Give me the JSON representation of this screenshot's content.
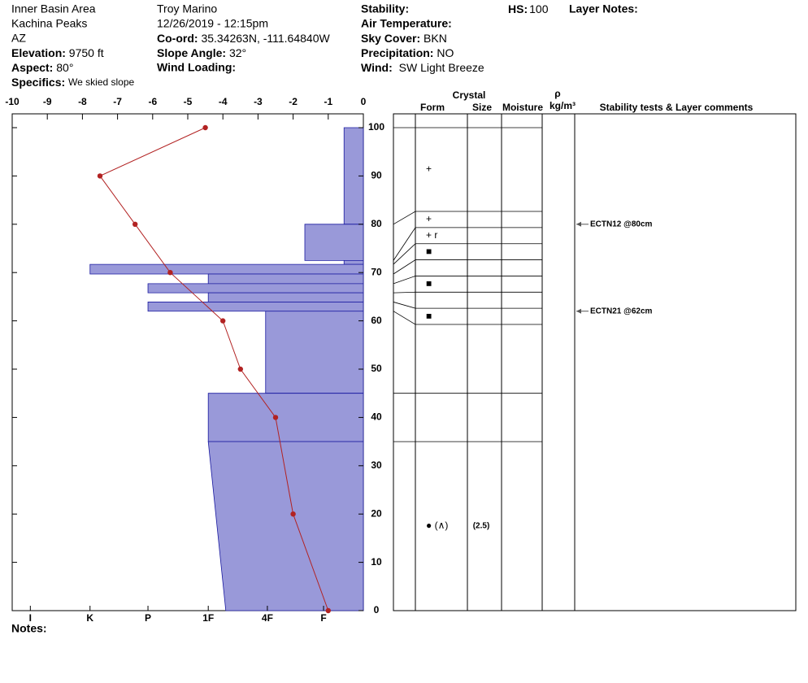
{
  "header": {
    "location": [
      "Inner Basin Area",
      "Kachina Peaks",
      "AZ"
    ],
    "elevation": {
      "label": "Elevation:",
      "value": "9750 ft"
    },
    "aspect": {
      "label": "Aspect:",
      "value": "80°"
    },
    "specifics": {
      "label": "Specifics:",
      "value": "We skied slope"
    },
    "observer": "Troy Marino",
    "datetime": "12/26/2019 - 12:15pm",
    "coord": {
      "label": "Co-ord:",
      "value": "35.34263N, -111.64840W"
    },
    "slope_angle": {
      "label": "Slope Angle:",
      "value": "32°"
    },
    "wind_loading": {
      "label": "Wind Loading:"
    },
    "stability": {
      "label": "Stability:"
    },
    "air_temperature": {
      "label": "Air Temperature:"
    },
    "sky_cover": {
      "label": "Sky Cover:",
      "value": "BKN"
    },
    "precipitation": {
      "label": "Precipitation:",
      "value": "NO"
    },
    "wind": {
      "label": "Wind:",
      "value": "SW Light Breeze"
    },
    "hs": {
      "label": "HS:",
      "value": "100"
    },
    "layer_notes": {
      "label": "Layer Notes:"
    },
    "notes": {
      "label": "Notes:"
    }
  },
  "chart_data": {
    "type": "snow_profile",
    "xlim": [
      -10,
      0
    ],
    "xticks": [
      -10,
      -9,
      -8,
      -7,
      -6,
      -5,
      -4,
      -3,
      -2,
      -1,
      0
    ],
    "ylim": [
      0,
      100
    ],
    "yticks": [
      0,
      10,
      20,
      30,
      40,
      50,
      60,
      70,
      80,
      90,
      100
    ],
    "hardness_xlim": [
      6,
      0
    ],
    "hardness_ticks": [
      {
        "value": 5.69,
        "label": "I"
      },
      {
        "value": 4.67,
        "label": "K"
      },
      {
        "value": 3.68,
        "label": "P"
      },
      {
        "value": 2.65,
        "label": "1F"
      },
      {
        "value": 1.64,
        "label": "4F"
      },
      {
        "value": 0.68,
        "label": "F"
      }
    ],
    "temperature": {
      "color": "#b22222",
      "depth": [
        100,
        90,
        80,
        70,
        60,
        50,
        40,
        20,
        0
      ],
      "temp": [
        -4.5,
        -7.5,
        -6.5,
        -5.5,
        -4,
        -3.5,
        -2.5,
        -2,
        -1
      ]
    },
    "layer_color": "#9999d9",
    "layers": [
      {
        "top": 100,
        "bottom": 80,
        "hardness": [
          0.33,
          0.33
        ],
        "form": "+"
      },
      {
        "top": 80,
        "bottom": 72.5,
        "hardness": [
          1,
          1
        ],
        "form": "+"
      },
      {
        "top": 72.5,
        "bottom": 71.7,
        "hardness": [
          0.33,
          0.33
        ],
        "form": "+ r"
      },
      {
        "top": 71.7,
        "bottom": 69.7,
        "hardness": [
          4.67,
          4.67
        ],
        "form": "■"
      },
      {
        "top": 69.7,
        "bottom": 67.7,
        "hardness": [
          2.65,
          2.65
        ]
      },
      {
        "top": 67.7,
        "bottom": 65.8,
        "hardness": [
          3.68,
          3.68
        ],
        "form": "■"
      },
      {
        "top": 65.8,
        "bottom": 63.9,
        "hardness": [
          2.65,
          2.65
        ]
      },
      {
        "top": 63.9,
        "bottom": 62,
        "hardness": [
          3.68,
          3.68
        ],
        "form": "■"
      },
      {
        "top": 62,
        "bottom": 45,
        "hardness": [
          1.67,
          1.67
        ]
      },
      {
        "top": 45,
        "bottom": 35,
        "hardness": [
          2.65,
          2.65
        ]
      },
      {
        "top": 35,
        "bottom": 0,
        "hardness": [
          2.65,
          2.35
        ],
        "form": "● (∧)",
        "size": "(2.5)"
      }
    ],
    "tests": [
      {
        "depth": 80,
        "label": "ECTN12 @80cm"
      },
      {
        "depth": 62,
        "label": "ECTN21 @62cm"
      }
    ],
    "columns": {
      "crystal": "Crystal",
      "form": "Form",
      "size": "Size",
      "moisture": "Moisture",
      "density": "ρ",
      "density_unit": "kg/m³",
      "comments": "Stability tests & Layer comments"
    }
  }
}
